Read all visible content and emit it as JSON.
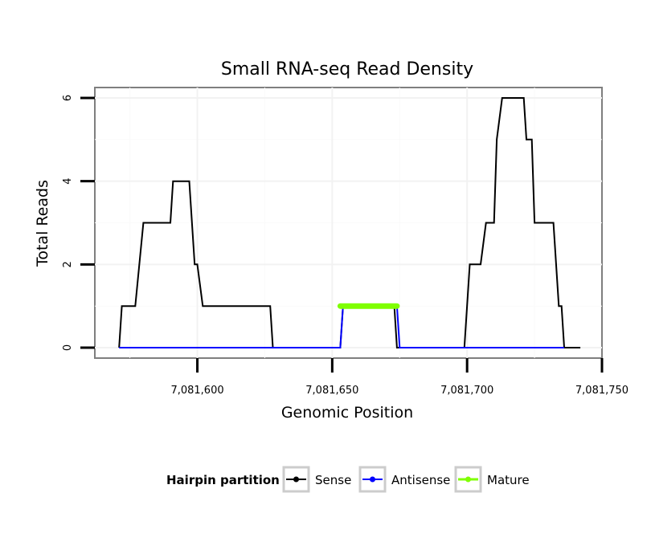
{
  "chart_data": {
    "type": "line",
    "title": "Small RNA-seq Read Density",
    "xlabel": "Genomic Position",
    "ylabel": "Total Reads",
    "xlim": [
      7081562,
      7081750
    ],
    "ylim": [
      -0.25,
      6.25
    ],
    "x_ticks": [
      7081600,
      7081650,
      7081700,
      7081750
    ],
    "x_tick_labels": [
      "7,081,600",
      "7,081,650",
      "7,081,700",
      "7,081,750"
    ],
    "y_ticks": [
      0,
      2,
      4,
      6
    ],
    "y_tick_labels": [
      "0",
      "2",
      "4",
      "6"
    ],
    "grid": true,
    "legend": {
      "title": "Hairpin partition",
      "position": "bottom",
      "entries": [
        "Sense",
        "Antisense",
        "Mature"
      ]
    },
    "series": [
      {
        "name": "Sense",
        "color": "#000000",
        "x": [
          7081571,
          7081572,
          7081577,
          7081580,
          7081581,
          7081590,
          7081591,
          7081597,
          7081599,
          7081600,
          7081602,
          7081627,
          7081628,
          7081653,
          7081654,
          7081673,
          7081674,
          7081699,
          7081701,
          7081705,
          7081707,
          7081710,
          7081711,
          7081713,
          7081721,
          7081722,
          7081724,
          7081725,
          7081732,
          7081734,
          7081735,
          7081736,
          7081742
        ],
        "y": [
          0,
          1,
          1,
          3,
          3,
          3,
          4,
          4,
          2,
          2,
          1,
          1,
          0,
          0,
          1,
          1,
          0,
          0,
          2,
          2,
          3,
          3,
          5,
          6,
          6,
          5,
          5,
          3,
          3,
          1,
          1,
          0,
          0
        ]
      },
      {
        "name": "Antisense",
        "color": "#0000ff",
        "x": [
          7081571,
          7081653,
          7081654,
          7081674,
          7081675,
          7081736
        ],
        "y": [
          0,
          0,
          1,
          1,
          0,
          0
        ]
      },
      {
        "name": "Mature",
        "color": "#7fff00",
        "x": [
          7081653,
          7081674
        ],
        "y": [
          1,
          1
        ]
      }
    ]
  }
}
